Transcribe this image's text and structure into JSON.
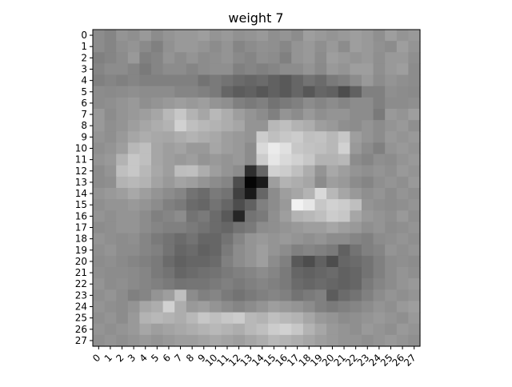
{
  "chart_data": {
    "type": "heatmap",
    "title": "weight 7",
    "xlabel": "",
    "ylabel": "",
    "colormap": "gray",
    "rows": 28,
    "cols": 28,
    "x_ticks": [
      "0",
      "1",
      "2",
      "3",
      "4",
      "5",
      "6",
      "7",
      "8",
      "9",
      "10",
      "11",
      "12",
      "13",
      "14",
      "15",
      "16",
      "17",
      "18",
      "19",
      "20",
      "21",
      "22",
      "23",
      "24",
      "25",
      "26",
      "27"
    ],
    "y_ticks": [
      "0",
      "1",
      "2",
      "3",
      "4",
      "5",
      "6",
      "7",
      "8",
      "9",
      "10",
      "11",
      "12",
      "13",
      "14",
      "15",
      "16",
      "17",
      "18",
      "19",
      "20",
      "21",
      "22",
      "23",
      "24",
      "25",
      "26",
      "27"
    ],
    "grid": false,
    "values": [
      [
        0.55,
        0.52,
        0.58,
        0.56,
        0.6,
        0.55,
        0.58,
        0.6,
        0.6,
        0.62,
        0.58,
        0.6,
        0.57,
        0.58,
        0.6,
        0.56,
        0.58,
        0.55,
        0.62,
        0.6,
        0.58,
        0.6,
        0.62,
        0.6,
        0.56,
        0.62,
        0.58,
        0.6
      ],
      [
        0.55,
        0.52,
        0.56,
        0.58,
        0.54,
        0.5,
        0.57,
        0.6,
        0.6,
        0.58,
        0.55,
        0.58,
        0.52,
        0.55,
        0.57,
        0.56,
        0.53,
        0.58,
        0.6,
        0.56,
        0.6,
        0.55,
        0.62,
        0.6,
        0.57,
        0.55,
        0.62,
        0.58
      ],
      [
        0.5,
        0.52,
        0.55,
        0.6,
        0.5,
        0.52,
        0.58,
        0.55,
        0.58,
        0.55,
        0.56,
        0.58,
        0.54,
        0.52,
        0.56,
        0.55,
        0.5,
        0.58,
        0.6,
        0.55,
        0.62,
        0.6,
        0.58,
        0.6,
        0.56,
        0.6,
        0.6,
        0.56
      ],
      [
        0.52,
        0.55,
        0.55,
        0.52,
        0.48,
        0.52,
        0.55,
        0.55,
        0.52,
        0.55,
        0.56,
        0.56,
        0.5,
        0.52,
        0.5,
        0.52,
        0.55,
        0.55,
        0.58,
        0.54,
        0.6,
        0.58,
        0.62,
        0.62,
        0.56,
        0.6,
        0.62,
        0.55
      ],
      [
        0.5,
        0.52,
        0.5,
        0.52,
        0.5,
        0.5,
        0.5,
        0.5,
        0.5,
        0.45,
        0.48,
        0.45,
        0.42,
        0.4,
        0.42,
        0.38,
        0.35,
        0.4,
        0.45,
        0.42,
        0.48,
        0.5,
        0.55,
        0.6,
        0.55,
        0.58,
        0.56,
        0.55
      ],
      [
        0.55,
        0.54,
        0.55,
        0.56,
        0.55,
        0.55,
        0.55,
        0.52,
        0.52,
        0.5,
        0.48,
        0.4,
        0.36,
        0.38,
        0.34,
        0.38,
        0.35,
        0.4,
        0.34,
        0.4,
        0.38,
        0.3,
        0.38,
        0.5,
        0.5,
        0.56,
        0.55,
        0.54
      ],
      [
        0.55,
        0.56,
        0.58,
        0.6,
        0.56,
        0.58,
        0.6,
        0.62,
        0.6,
        0.62,
        0.58,
        0.56,
        0.5,
        0.48,
        0.5,
        0.45,
        0.48,
        0.5,
        0.55,
        0.52,
        0.55,
        0.52,
        0.55,
        0.55,
        0.5,
        0.55,
        0.55,
        0.56
      ],
      [
        0.6,
        0.55,
        0.58,
        0.6,
        0.62,
        0.65,
        0.72,
        0.78,
        0.7,
        0.65,
        0.72,
        0.68,
        0.62,
        0.58,
        0.55,
        0.5,
        0.58,
        0.55,
        0.6,
        0.56,
        0.58,
        0.58,
        0.55,
        0.55,
        0.48,
        0.6,
        0.58,
        0.62
      ],
      [
        0.6,
        0.56,
        0.58,
        0.62,
        0.65,
        0.68,
        0.7,
        0.82,
        0.75,
        0.72,
        0.7,
        0.68,
        0.65,
        0.58,
        0.58,
        0.72,
        0.75,
        0.7,
        0.68,
        0.62,
        0.6,
        0.56,
        0.55,
        0.58,
        0.55,
        0.58,
        0.6,
        0.56
      ],
      [
        0.58,
        0.56,
        0.6,
        0.65,
        0.68,
        0.66,
        0.65,
        0.68,
        0.7,
        0.68,
        0.66,
        0.62,
        0.6,
        0.58,
        0.8,
        0.75,
        0.78,
        0.8,
        0.75,
        0.76,
        0.72,
        0.78,
        0.62,
        0.58,
        0.55,
        0.6,
        0.58,
        0.6
      ],
      [
        0.56,
        0.58,
        0.62,
        0.72,
        0.75,
        0.65,
        0.62,
        0.64,
        0.6,
        0.6,
        0.65,
        0.62,
        0.6,
        0.55,
        0.85,
        0.92,
        0.88,
        0.78,
        0.76,
        0.75,
        0.72,
        0.82,
        0.6,
        0.55,
        0.5,
        0.58,
        0.6,
        0.58
      ],
      [
        0.58,
        0.6,
        0.7,
        0.78,
        0.75,
        0.65,
        0.62,
        0.6,
        0.62,
        0.58,
        0.6,
        0.58,
        0.6,
        0.55,
        0.8,
        0.9,
        0.85,
        0.82,
        0.78,
        0.7,
        0.7,
        0.72,
        0.55,
        0.52,
        0.56,
        0.55,
        0.58,
        0.6
      ],
      [
        0.55,
        0.58,
        0.75,
        0.78,
        0.72,
        0.66,
        0.62,
        0.74,
        0.75,
        0.68,
        0.62,
        0.58,
        0.55,
        0.18,
        0.4,
        0.82,
        0.8,
        0.75,
        0.68,
        0.58,
        0.66,
        0.62,
        0.58,
        0.56,
        0.58,
        0.56,
        0.6,
        0.58
      ],
      [
        0.55,
        0.56,
        0.7,
        0.72,
        0.7,
        0.64,
        0.6,
        0.64,
        0.62,
        0.58,
        0.55,
        0.52,
        0.3,
        0.02,
        0.1,
        0.62,
        0.7,
        0.68,
        0.65,
        0.55,
        0.62,
        0.6,
        0.55,
        0.52,
        0.56,
        0.58,
        0.56,
        0.6
      ],
      [
        0.58,
        0.6,
        0.62,
        0.66,
        0.62,
        0.58,
        0.55,
        0.52,
        0.45,
        0.42,
        0.48,
        0.45,
        0.25,
        0.1,
        0.4,
        0.55,
        0.62,
        0.65,
        0.7,
        0.85,
        0.72,
        0.65,
        0.6,
        0.56,
        0.58,
        0.55,
        0.58,
        0.56
      ],
      [
        0.56,
        0.58,
        0.58,
        0.6,
        0.58,
        0.55,
        0.5,
        0.48,
        0.42,
        0.4,
        0.45,
        0.4,
        0.3,
        0.38,
        0.5,
        0.55,
        0.6,
        0.95,
        0.9,
        0.78,
        0.82,
        0.8,
        0.75,
        0.58,
        0.56,
        0.55,
        0.56,
        0.58
      ],
      [
        0.58,
        0.56,
        0.58,
        0.58,
        0.55,
        0.5,
        0.52,
        0.55,
        0.45,
        0.48,
        0.42,
        0.35,
        0.15,
        0.45,
        0.48,
        0.56,
        0.62,
        0.7,
        0.72,
        0.75,
        0.8,
        0.78,
        0.65,
        0.6,
        0.58,
        0.56,
        0.6,
        0.56
      ],
      [
        0.55,
        0.56,
        0.58,
        0.58,
        0.55,
        0.52,
        0.5,
        0.5,
        0.48,
        0.45,
        0.42,
        0.4,
        0.45,
        0.48,
        0.55,
        0.56,
        0.58,
        0.6,
        0.62,
        0.62,
        0.65,
        0.62,
        0.6,
        0.56,
        0.58,
        0.55,
        0.56,
        0.58
      ],
      [
        0.58,
        0.56,
        0.55,
        0.56,
        0.52,
        0.48,
        0.45,
        0.42,
        0.45,
        0.4,
        0.4,
        0.45,
        0.52,
        0.58,
        0.6,
        0.58,
        0.6,
        0.58,
        0.56,
        0.58,
        0.55,
        0.55,
        0.52,
        0.5,
        0.55,
        0.56,
        0.58,
        0.56
      ],
      [
        0.56,
        0.58,
        0.55,
        0.55,
        0.52,
        0.5,
        0.45,
        0.4,
        0.42,
        0.38,
        0.4,
        0.48,
        0.55,
        0.58,
        0.62,
        0.58,
        0.55,
        0.5,
        0.52,
        0.5,
        0.48,
        0.38,
        0.45,
        0.5,
        0.52,
        0.58,
        0.56,
        0.58
      ],
      [
        0.55,
        0.56,
        0.54,
        0.52,
        0.5,
        0.48,
        0.42,
        0.38,
        0.4,
        0.4,
        0.42,
        0.5,
        0.55,
        0.58,
        0.62,
        0.55,
        0.5,
        0.35,
        0.3,
        0.38,
        0.3,
        0.4,
        0.42,
        0.45,
        0.5,
        0.55,
        0.56,
        0.55
      ],
      [
        0.56,
        0.55,
        0.55,
        0.54,
        0.52,
        0.48,
        0.45,
        0.4,
        0.42,
        0.44,
        0.45,
        0.48,
        0.5,
        0.52,
        0.55,
        0.52,
        0.48,
        0.4,
        0.38,
        0.4,
        0.42,
        0.38,
        0.4,
        0.45,
        0.5,
        0.55,
        0.58,
        0.56
      ],
      [
        0.58,
        0.55,
        0.56,
        0.54,
        0.52,
        0.5,
        0.48,
        0.45,
        0.46,
        0.46,
        0.48,
        0.5,
        0.48,
        0.5,
        0.52,
        0.5,
        0.48,
        0.42,
        0.4,
        0.42,
        0.4,
        0.38,
        0.4,
        0.48,
        0.52,
        0.55,
        0.58,
        0.6
      ],
      [
        0.56,
        0.58,
        0.55,
        0.5,
        0.52,
        0.58,
        0.62,
        0.75,
        0.55,
        0.5,
        0.52,
        0.48,
        0.45,
        0.48,
        0.5,
        0.52,
        0.5,
        0.45,
        0.48,
        0.5,
        0.36,
        0.42,
        0.45,
        0.5,
        0.55,
        0.58,
        0.56,
        0.58
      ],
      [
        0.58,
        0.56,
        0.55,
        0.58,
        0.65,
        0.68,
        0.82,
        0.68,
        0.6,
        0.62,
        0.58,
        0.55,
        0.52,
        0.55,
        0.58,
        0.62,
        0.6,
        0.58,
        0.55,
        0.5,
        0.48,
        0.5,
        0.52,
        0.55,
        0.58,
        0.56,
        0.6,
        0.62
      ],
      [
        0.56,
        0.58,
        0.55,
        0.6,
        0.7,
        0.72,
        0.7,
        0.68,
        0.72,
        0.78,
        0.75,
        0.78,
        0.8,
        0.72,
        0.7,
        0.75,
        0.72,
        0.7,
        0.65,
        0.6,
        0.58,
        0.55,
        0.56,
        0.58,
        0.6,
        0.58,
        0.56,
        0.6
      ],
      [
        0.58,
        0.56,
        0.58,
        0.6,
        0.65,
        0.62,
        0.64,
        0.66,
        0.68,
        0.7,
        0.72,
        0.7,
        0.68,
        0.72,
        0.75,
        0.8,
        0.82,
        0.78,
        0.7,
        0.65,
        0.6,
        0.58,
        0.56,
        0.6,
        0.58,
        0.56,
        0.6,
        0.58
      ],
      [
        0.56,
        0.58,
        0.56,
        0.58,
        0.6,
        0.58,
        0.6,
        0.62,
        0.62,
        0.64,
        0.66,
        0.64,
        0.62,
        0.65,
        0.68,
        0.72,
        0.7,
        0.68,
        0.65,
        0.62,
        0.6,
        0.58,
        0.58,
        0.56,
        0.58,
        0.6,
        0.58,
        0.56
      ]
    ]
  }
}
